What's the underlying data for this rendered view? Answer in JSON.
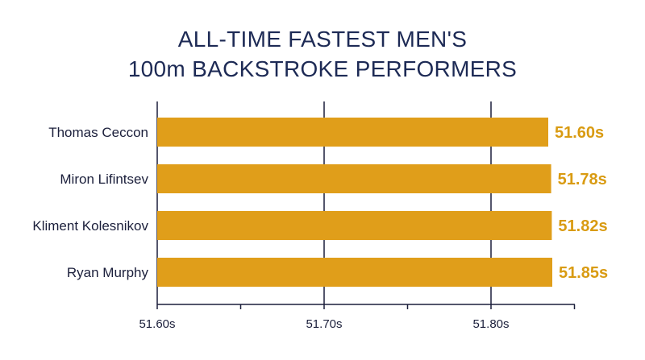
{
  "title_line1": "ALL-TIME FASTEST MEN'S",
  "title_line2": "100m BACKSTROKE PERFORMERS",
  "colors": {
    "bar": "#e09e1a",
    "value_label": "#d99b12",
    "axis": "#1b1f3b",
    "title": "#1d2a55"
  },
  "chart_data": {
    "type": "bar",
    "orientation": "horizontal",
    "title": "ALL-TIME FASTEST MEN'S 100m BACKSTROKE PERFORMERS",
    "categories": [
      "Thomas Ceccon",
      "Miron Lifintsev",
      "Kliment Kolesnikov",
      "Ryan Murphy"
    ],
    "values": [
      51.6,
      51.78,
      51.82,
      51.85
    ],
    "value_labels": [
      "51.60s",
      "51.78s",
      "51.82s",
      "51.85s"
    ],
    "xticks": [
      51.6,
      51.7,
      51.8
    ],
    "xtick_labels": [
      "51.60s",
      "51.70s",
      "51.80s"
    ],
    "grid": "vertical lines at labeled ticks",
    "legend": "none"
  }
}
